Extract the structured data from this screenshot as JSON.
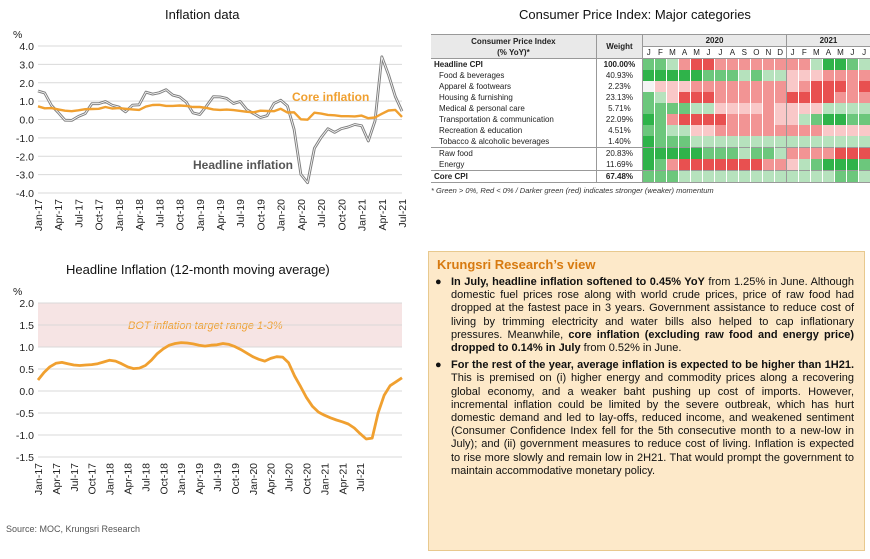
{
  "chart_data": [
    {
      "type": "line",
      "title": "Inflation data",
      "unit_label": "%",
      "ylim": [
        -4.0,
        4.0
      ],
      "yticks": [
        "4.0",
        "3.0",
        "2.0",
        "1.0",
        "0.0",
        "-1.0",
        "-2.0",
        "-3.0",
        "-4.0"
      ],
      "xticks": [
        "Jan-17",
        "Apr-17",
        "Jul-17",
        "Oct-17",
        "Jan-18",
        "Apr-18",
        "Jul-18",
        "Oct-18",
        "Jan-19",
        "Apr-19",
        "Jul-19",
        "Oct-19",
        "Jan-20",
        "Apr-20",
        "Jul-20",
        "Oct-20",
        "Jan-21",
        "Apr-21",
        "Jul-21"
      ],
      "series": [
        {
          "name": "Headline inflation",
          "color": "#808080",
          "values": [
            1.55,
            1.44,
            0.76,
            0.38,
            -0.04,
            -0.05,
            0.17,
            0.32,
            0.86,
            0.86,
            0.98,
            0.78,
            0.68,
            0.42,
            0.78,
            0.8,
            1.49,
            1.38,
            1.46,
            1.62,
            1.33,
            1.23,
            0.94,
            0.36,
            0.27,
            0.73,
            1.24,
            1.23,
            1.15,
            0.87,
            0.98,
            0.52,
            0.32,
            0.11,
            0.21,
            0.87,
            1.05,
            0.74,
            -0.54,
            -2.99,
            -3.44,
            -1.57,
            -0.98,
            -0.5,
            -0.7,
            -0.5,
            -0.41,
            -0.27,
            -0.34,
            -1.17,
            -0.08,
            3.41,
            2.44,
            1.25,
            0.45
          ]
        },
        {
          "name": "Core inflation",
          "color": "#f0a030",
          "values": [
            0.72,
            0.61,
            0.62,
            0.55,
            0.48,
            0.45,
            0.5,
            0.56,
            0.57,
            0.58,
            0.68,
            0.6,
            0.62,
            0.58,
            0.55,
            0.52,
            0.7,
            0.79,
            0.8,
            0.74,
            0.74,
            0.76,
            0.74,
            0.68,
            0.68,
            0.63,
            0.55,
            0.52,
            0.54,
            0.51,
            0.47,
            0.42,
            0.39,
            0.48,
            0.46,
            0.45,
            0.58,
            0.38,
            0.39,
            0.01,
            -0.01,
            0.37,
            0.32,
            0.25,
            0.23,
            0.18,
            0.18,
            0.17,
            0.21,
            0.07,
            0.11,
            0.31,
            0.49,
            0.52,
            0.14
          ]
        }
      ],
      "annotations": [
        "Core inflation",
        "Headline inflation"
      ]
    },
    {
      "type": "line",
      "title": "Headline Inflation (12-month moving average)",
      "unit_label": "%",
      "ylim": [
        -1.5,
        2.0
      ],
      "yticks": [
        "2.0",
        "1.5",
        "1.0",
        "0.5",
        "0.0",
        "-0.5",
        "-1.0",
        "-1.5"
      ],
      "xticks": [
        "Jan-17",
        "Apr-17",
        "Jul-17",
        "Oct-17",
        "Jan-18",
        "Apr-18",
        "Jul-18",
        "Oct-18",
        "Jan-19",
        "Apr-19",
        "Jul-19",
        "Oct-19",
        "Jan-20",
        "Apr-20",
        "Jul-20",
        "Oct-20",
        "Jan-21",
        "Apr-21",
        "Jul-21"
      ],
      "band": {
        "from": 1.0,
        "to": 3.0,
        "label": "BOT inflation target range 1-3%",
        "color": "#f6e4e4"
      },
      "series": [
        {
          "name": "",
          "color": "#f0a030",
          "values": [
            0.25,
            0.42,
            0.55,
            0.63,
            0.65,
            0.62,
            0.59,
            0.58,
            0.59,
            0.6,
            0.62,
            0.66,
            0.7,
            0.68,
            0.62,
            0.55,
            0.51,
            0.52,
            0.58,
            0.7,
            0.85,
            0.96,
            1.04,
            1.08,
            1.1,
            1.09,
            1.07,
            1.04,
            1.02,
            1.04,
            1.05,
            1.08,
            1.06,
            1.01,
            0.94,
            0.86,
            0.78,
            0.72,
            0.68,
            0.74,
            0.78,
            0.77,
            0.64,
            0.34,
            0.1,
            -0.15,
            -0.35,
            -0.48,
            -0.55,
            -0.61,
            -0.66,
            -0.7,
            -0.75,
            -0.84,
            -0.97,
            -1.09,
            -1.07,
            -0.5,
            -0.1,
            0.12,
            0.21,
            0.3
          ]
        }
      ]
    }
  ],
  "cpi_table": {
    "title": "Consumer Price Index: Major categories",
    "header_label_1": "Consumer Price Index",
    "header_label_2": "(% YoY)*",
    "weight_label": "Weight",
    "year_2020": "2020",
    "year_2021": "2021",
    "months_2020": [
      "J",
      "F",
      "M",
      "A",
      "M",
      "J",
      "J",
      "A",
      "S",
      "O",
      "N",
      "D"
    ],
    "months_2021": [
      "J",
      "F",
      "M",
      "A",
      "M",
      "J",
      "J"
    ],
    "colors": {
      "g3": "#2fb34a",
      "g2": "#6cc77c",
      "g1": "#b6e2bd",
      "n": "#f4f4f4",
      "r1": "#f9c8c8",
      "r2": "#f29494",
      "r3": "#e85050"
    },
    "rows": [
      {
        "name": "Headline CPI",
        "weight": "100.00%",
        "bold": true,
        "sep": true,
        "cells": [
          "g2",
          "g2",
          "g1",
          "r2",
          "r3",
          "r3",
          "r2",
          "r2",
          "r2",
          "r2",
          "r2",
          "r2",
          "r2",
          "r2",
          "g1",
          "g3",
          "g3",
          "g2",
          "g1"
        ]
      },
      {
        "name": "Food & beverages",
        "weight": "40.93%",
        "cells": [
          "g3",
          "g3",
          "g3",
          "g3",
          "g3",
          "g2",
          "g2",
          "g2",
          "g1",
          "g2",
          "g1",
          "g1",
          "r1",
          "r1",
          "r1",
          "r2",
          "r2",
          "r2",
          "r2"
        ]
      },
      {
        "name": "Apparel & footwears",
        "weight": "2.23%",
        "cells": [
          "n",
          "r1",
          "r1",
          "r1",
          "r2",
          "r2",
          "r2",
          "r2",
          "r2",
          "r2",
          "r2",
          "r2",
          "r1",
          "r2",
          "r3",
          "r3",
          "r3",
          "r2",
          "r3"
        ]
      },
      {
        "name": "Housing & furnishing",
        "weight": "23.13%",
        "cells": [
          "g2",
          "g1",
          "r1",
          "r3",
          "r3",
          "r3",
          "r2",
          "r2",
          "r2",
          "r2",
          "r2",
          "r2",
          "r3",
          "r3",
          "r3",
          "r3",
          "r2",
          "r2",
          "r2"
        ]
      },
      {
        "name": "Medical & personal care",
        "weight": "5.71%",
        "cells": [
          "g2",
          "g2",
          "g2",
          "g2",
          "g1",
          "g1",
          "r1",
          "r1",
          "r1",
          "r1",
          "r2",
          "r1",
          "r1",
          "r1",
          "r1",
          "g1",
          "g1",
          "g1",
          "g1"
        ]
      },
      {
        "name": "Transportation & communication",
        "weight": "22.09%",
        "cells": [
          "g3",
          "g2",
          "r2",
          "r3",
          "r3",
          "r3",
          "r3",
          "r2",
          "r2",
          "r2",
          "r2",
          "r1",
          "r1",
          "g1",
          "g2",
          "g3",
          "g3",
          "g2",
          "g2"
        ]
      },
      {
        "name": "Recreation & education",
        "weight": "4.51%",
        "cells": [
          "g2",
          "g2",
          "g1",
          "g1",
          "r1",
          "r1",
          "r2",
          "r2",
          "r2",
          "r2",
          "r2",
          "r2",
          "r2",
          "r2",
          "r2",
          "r1",
          "r1",
          "r1",
          "r1"
        ]
      },
      {
        "name": "Tobacco & alcoholic beverages",
        "weight": "1.40%",
        "cells": [
          "g3",
          "g2",
          "g2",
          "g2",
          "g1",
          "g1",
          "g1",
          "g1",
          "g1",
          "g1",
          "g1",
          "g1",
          "g1",
          "g1",
          "g1",
          "g1",
          "g1",
          "g1",
          "g1"
        ]
      },
      {
        "name": "Raw food",
        "weight": "20.83%",
        "sep": true,
        "cells": [
          "g3",
          "g3",
          "g3",
          "g3",
          "g3",
          "g2",
          "g2",
          "g2",
          "g1",
          "g2",
          "g2",
          "g1",
          "r2",
          "r2",
          "r2",
          "r2",
          "r3",
          "r3",
          "r3"
        ]
      },
      {
        "name": "Energy",
        "weight": "11.69%",
        "cells": [
          "g3",
          "g2",
          "r2",
          "r3",
          "r3",
          "r3",
          "r3",
          "r3",
          "r3",
          "r3",
          "r2",
          "r2",
          "r1",
          "g1",
          "g2",
          "g3",
          "g3",
          "g3",
          "g2"
        ]
      },
      {
        "name": "Core CPI",
        "weight": "67.48%",
        "bold": true,
        "sep": true,
        "last": true,
        "cells": [
          "g2",
          "g2",
          "g2",
          "g1",
          "g1",
          "g1",
          "g1",
          "g1",
          "g1",
          "g1",
          "g1",
          "g1",
          "g1",
          "g1",
          "g1",
          "g1",
          "g2",
          "g2",
          "g1"
        ]
      }
    ],
    "footnote": "* Green > 0%, Red < 0% / Darker green (red) indicates stronger (weaker) momentum"
  },
  "view": {
    "title": "Krungsri Research’s view",
    "bullet_1": {
      "b1": "In July, headline inflation softened to 0.45% YoY",
      "t1": " from 1.25% in June. Although domestic fuel prices rose along with world crude prices, price of raw food had dropped at the fastest pace in 3 years. Government assistance to reduce cost of living by trimming electricity and water bills also helped to cap inflationary pressures. Meanwhile, ",
      "b2": "core inflation (excluding raw food and energy price) dropped to 0.14% in July",
      "t2": " from 0.52% in June."
    },
    "bullet_2": {
      "b1": "For the rest of the year, average inflation is expected to be higher than 1H21.",
      "t1": " This is premised on (i) higher energy and commodity prices along a recovering global economy, and a weaker baht pushing up cost of imports. However, incremental inflation could be limited by the severe outbreak, which has hurt domestic demand and led to lay-offs, reduced income, and weakened sentiment (Consumer Confidence Index fell for the 5th consecutive month to a new-low in July); and (ii) government measures to reduce cost of living. Inflation is expected to rise more slowly and remain low in 2H21. That would prompt the government to maintain accommodative monetary policy."
    }
  },
  "source": "Source: MOC, Krungsri Research"
}
